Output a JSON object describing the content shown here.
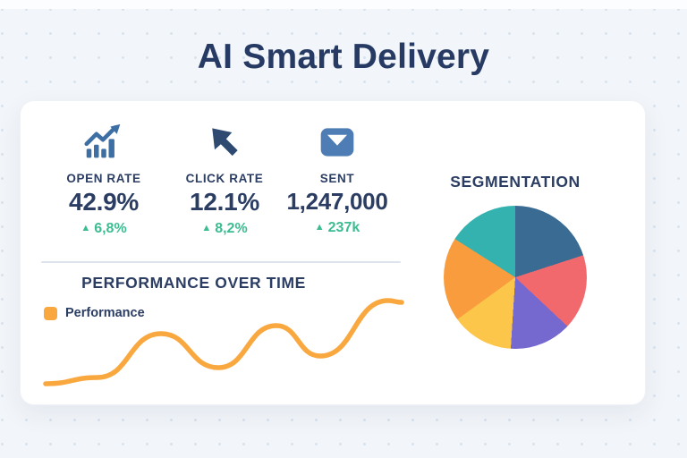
{
  "page": {
    "title": "AI Smart Delivery"
  },
  "colors": {
    "background": "#F2F5F9",
    "card": "#FFFFFF",
    "navy": "#2B3D63",
    "title_navy": "#263A63",
    "green": "#3CBC92",
    "orange": "#F9A83F",
    "divider": "#DCE3EC",
    "icon_blue": "#3D6FA5",
    "icon_navy": "#2E4A70",
    "icon_steel": "#4E7DB5",
    "dot": "#D8E3EE"
  },
  "kpis": [
    {
      "id": "open-rate",
      "icon": "trend-up-chart-icon",
      "label": "OPEN RATE",
      "value": "42.9%",
      "delta": "6,8%",
      "delta_direction": "up"
    },
    {
      "id": "click-rate",
      "icon": "cursor-arrow-icon",
      "label": "CLICK RATE",
      "value": "12.1%",
      "delta": "8,2%",
      "delta_direction": "up"
    },
    {
      "id": "sent",
      "icon": "envelope-icon",
      "label": "SENT",
      "value": "1,247,000",
      "delta": "237k",
      "delta_direction": "up"
    }
  ],
  "chart_data": [
    {
      "type": "line",
      "title": "PERFORMANCE OVER TIME",
      "axes": "hidden",
      "grid": false,
      "legend_position": "top-left",
      "series": [
        {
          "name": "Performance",
          "color": "#F9A83F",
          "x": [
            0,
            14.6,
            32.4,
            48.5,
            64.8,
            77.1,
            96.2,
            100
          ],
          "y": [
            0,
            7.5,
            60.2,
            19.4,
            69.9,
            33.3,
            100,
            97.8
          ]
        }
      ]
    },
    {
      "type": "pie",
      "title": "SEGMENTATION",
      "values": [
        20,
        17,
        14,
        14,
        19,
        16
      ],
      "colors": [
        "#3A6B92",
        "#F1696D",
        "#7568CF",
        "#FCC64A",
        "#F89C3D",
        "#33B2AF"
      ],
      "start_angle_deg": 0,
      "direction": "clockwise"
    }
  ]
}
